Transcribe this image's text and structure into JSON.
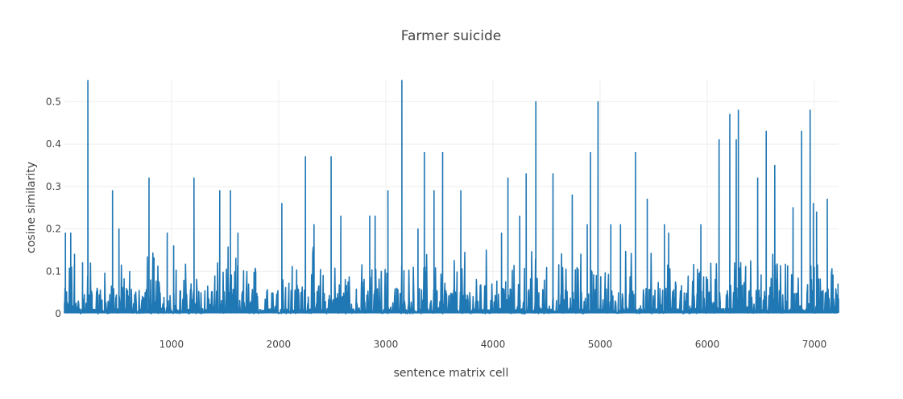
{
  "chart_data": {
    "type": "line",
    "title": "Farmer suicide",
    "xlabel": "sentence matrix cell",
    "ylabel": "cosine similarity",
    "xlim": [
      1,
      7225
    ],
    "ylim": [
      0,
      0.55
    ],
    "xticks": [
      1000,
      2000,
      3000,
      4000,
      5000,
      6000,
      7000
    ],
    "yticks": [
      0,
      0.1,
      0.2,
      0.3,
      0.4,
      0.5
    ],
    "ytick_labels": [
      "0",
      "0.1",
      "0.2",
      "0.3",
      "0.4",
      "0.5"
    ],
    "grid": true,
    "line_color": "#1f77b4",
    "series": [
      {
        "peaks": [
          [
            10,
            0.19
          ],
          [
            60,
            0.19
          ],
          [
            95,
            0.14
          ],
          [
            170,
            0.12
          ],
          [
            220,
            0.55
          ],
          [
            450,
            0.29
          ],
          [
            510,
            0.2
          ],
          [
            790,
            0.32
          ],
          [
            960,
            0.19
          ],
          [
            1020,
            0.16
          ],
          [
            1210,
            0.32
          ],
          [
            1450,
            0.29
          ],
          [
            1550,
            0.29
          ],
          [
            1620,
            0.19
          ],
          [
            2030,
            0.26
          ],
          [
            2250,
            0.37
          ],
          [
            2330,
            0.21
          ],
          [
            2490,
            0.37
          ],
          [
            2580,
            0.23
          ],
          [
            2850,
            0.23
          ],
          [
            2900,
            0.23
          ],
          [
            3020,
            0.29
          ],
          [
            3150,
            0.55
          ],
          [
            3300,
            0.2
          ],
          [
            3360,
            0.38
          ],
          [
            3450,
            0.29
          ],
          [
            3530,
            0.38
          ],
          [
            3700,
            0.29
          ],
          [
            4080,
            0.19
          ],
          [
            4140,
            0.32
          ],
          [
            4250,
            0.23
          ],
          [
            4310,
            0.33
          ],
          [
            4400,
            0.5
          ],
          [
            4560,
            0.33
          ],
          [
            4740,
            0.28
          ],
          [
            4880,
            0.21
          ],
          [
            4910,
            0.38
          ],
          [
            4980,
            0.5
          ],
          [
            5100,
            0.21
          ],
          [
            5190,
            0.21
          ],
          [
            5330,
            0.38
          ],
          [
            5440,
            0.27
          ],
          [
            5600,
            0.21
          ],
          [
            5640,
            0.19
          ],
          [
            5940,
            0.21
          ],
          [
            6110,
            0.41
          ],
          [
            6210,
            0.47
          ],
          [
            6270,
            0.41
          ],
          [
            6290,
            0.48
          ],
          [
            6470,
            0.32
          ],
          [
            6550,
            0.43
          ],
          [
            6630,
            0.35
          ],
          [
            6800,
            0.25
          ],
          [
            6880,
            0.43
          ],
          [
            6960,
            0.48
          ],
          [
            6990,
            0.26
          ],
          [
            7020,
            0.24
          ],
          [
            7120,
            0.27
          ],
          [
            7220,
            0.07
          ]
        ]
      }
    ]
  }
}
